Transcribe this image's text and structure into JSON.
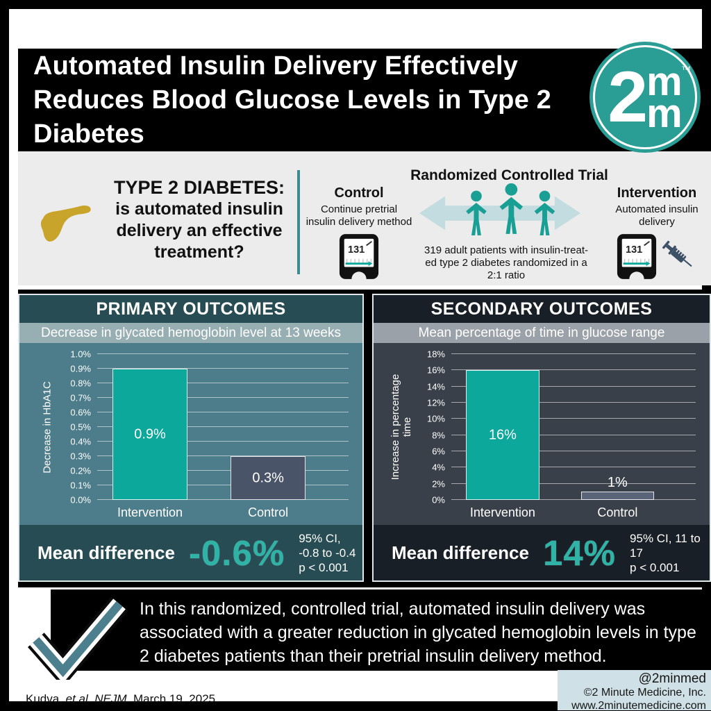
{
  "header": {
    "title_lines": [
      "Automated Insulin Delivery Effectively",
      "Reduces Blood Glucose Levels in Type 2",
      "Diabetes"
    ],
    "logo": {
      "big_numeral": "2",
      "m_top": "m",
      "m_bottom": "m",
      "trademark": "™"
    }
  },
  "overview": {
    "question_heading": "TYPE 2 DIABETES:",
    "question_text": "is automated insulin delivery an effective treatment?",
    "trial_heading": "Randomized Controlled Trial",
    "control_label": "Control",
    "control_description": "Continue pretrial insulin delivery method",
    "intervention_label": "Intervention",
    "intervention_description": "Automated insulin delivery",
    "monitor_reading": "131",
    "randomization_lines": [
      "319 adult patients with insulin-treat-",
      "ed type 2 diabetes randomized in a",
      "2:1 ratio"
    ]
  },
  "chart_data": [
    {
      "type": "bar",
      "panel_title": "PRIMARY OUTCOMES",
      "subtitle": "Decrease in glycated hemoglobin level at 13 weeks",
      "categories": [
        "Intervention",
        "Control"
      ],
      "values": [
        0.9,
        0.3
      ],
      "bar_labels": [
        "0.9%",
        "0.3%"
      ],
      "bar_colors": [
        "#0ca89b",
        "#4a5469"
      ],
      "ylabel": "Decrease in HbA1C",
      "ylim": [
        0,
        1.0
      ],
      "ytick_values": [
        0,
        0.1,
        0.2,
        0.3,
        0.4,
        0.5,
        0.6,
        0.7,
        0.8,
        0.9,
        1.0
      ],
      "ytick_labels": [
        "0.0%",
        "0.1%",
        "0.2%",
        "0.3%",
        "0.4%",
        "0.5%",
        "0.6%",
        "0.7%",
        "0.8%",
        "0.9%",
        "1.0%"
      ],
      "grid": true,
      "legend_position": "none",
      "mean_difference": {
        "label": "Mean difference",
        "value": "-0.6%",
        "ci": "95% CI, -0.8 to -0.4",
        "p": "p < 0.001"
      }
    },
    {
      "type": "bar",
      "panel_title": "SECONDARY OUTCOMES",
      "subtitle": "Mean percentage of time in glucose range",
      "categories": [
        "Intervention",
        "Control"
      ],
      "values": [
        16,
        1
      ],
      "bar_labels": [
        "16%",
        "1%"
      ],
      "bar_colors": [
        "#0ca89b",
        "#5a6478"
      ],
      "ylabel": "Increase in percentage time",
      "ylim": [
        0,
        18
      ],
      "ytick_values": [
        0,
        2,
        4,
        6,
        8,
        10,
        12,
        14,
        16,
        18
      ],
      "ytick_labels": [
        "0%",
        "2%",
        "4%",
        "6%",
        "8%",
        "10%",
        "12%",
        "14%",
        "16%",
        "18%"
      ],
      "grid": true,
      "legend_position": "none",
      "mean_difference": {
        "label": "Mean difference",
        "value": "14%",
        "ci": "95% CI, 11 to 17",
        "p": "p < 0.001"
      }
    }
  ],
  "summary": {
    "text": "In this randomized, controlled trial, automated insulin delivery was associated with a greater reduction in glycated hemoglobin levels in type 2 diabetes patients than their pretrial insulin delivery method."
  },
  "footer": {
    "citation_author": "Kudva, ",
    "citation_italic": "et al. NEJM.",
    "citation_date": " March 19, 2025.",
    "social_handle": "@2minmed",
    "copyright": "©2 Minute Medicine, Inc.",
    "website": "www.2minutemedicine.com"
  },
  "colors": {
    "teal_accent": "#0ca89b",
    "logo_teal": "#2a9d95",
    "primary_panel_bg": "#4d7d8a",
    "primary_band": "#274c53",
    "secondary_panel_bg": "#394049",
    "secondary_band": "#191f26",
    "control_bar_primary": "#4a5469",
    "control_bar_secondary": "#5a6478",
    "check_teal": "#4d808f",
    "pancreas_gold": "#c8a42a",
    "credits_bg": "#cfe1e6"
  }
}
